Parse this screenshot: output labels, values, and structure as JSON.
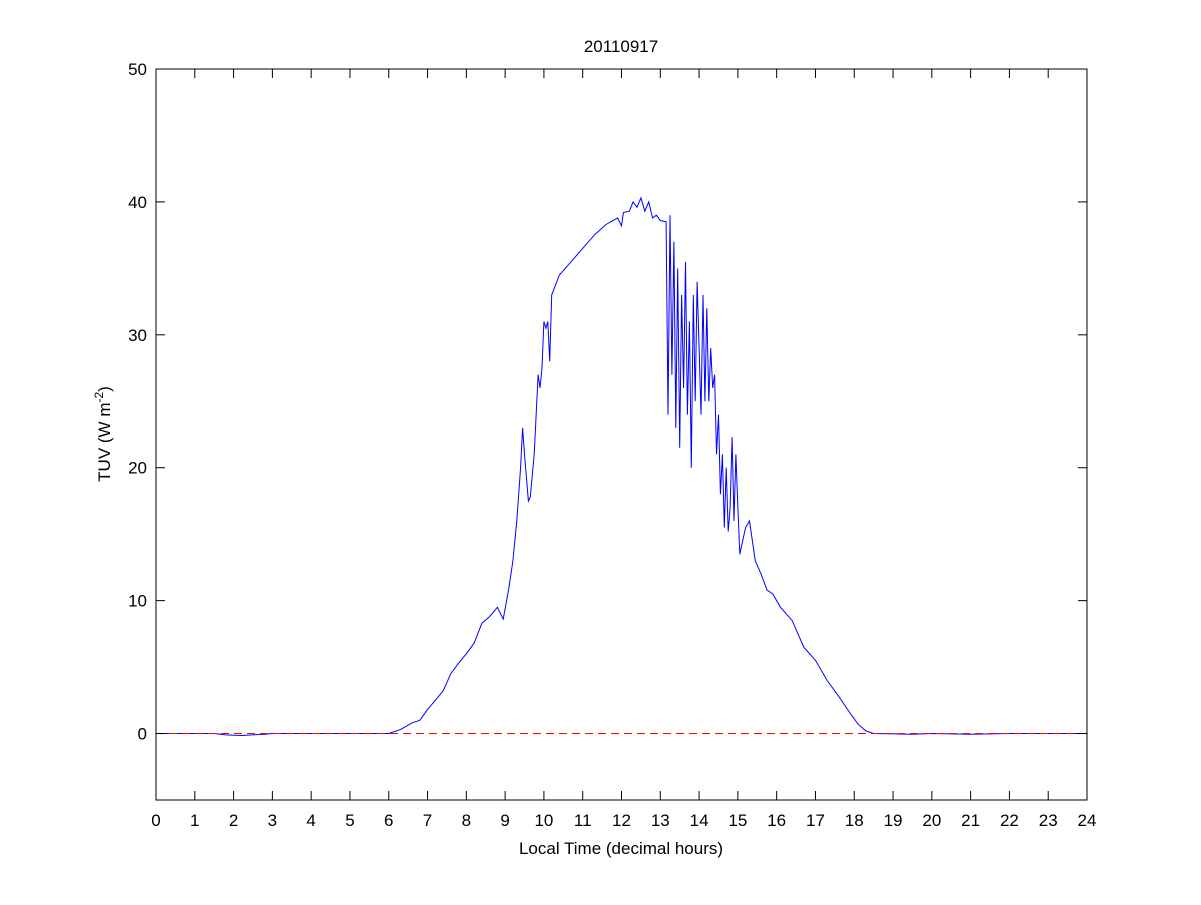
{
  "chart_data": {
    "type": "line",
    "title": "20110917",
    "xlabel": "Local Time (decimal hours)",
    "ylabel_main": "TUV (W m",
    "ylabel_sup": "-2",
    "ylabel_close": ")",
    "xlim": [
      0,
      24
    ],
    "ylim": [
      -5,
      50
    ],
    "xticks": [
      0,
      1,
      2,
      3,
      4,
      5,
      6,
      7,
      8,
      9,
      10,
      11,
      12,
      13,
      14,
      15,
      16,
      17,
      18,
      19,
      20,
      21,
      22,
      23,
      24
    ],
    "yticks": [
      0,
      10,
      20,
      30,
      40,
      50
    ],
    "grid": false,
    "series": [
      {
        "color": "#0000ff",
        "x": [
          0,
          1.5,
          1.8,
          2.2,
          2.8,
          3.0,
          6.0,
          6.3,
          6.6,
          6.8,
          7.0,
          7.2,
          7.4,
          7.6,
          7.8,
          8.0,
          8.2,
          8.4,
          8.6,
          8.8,
          8.95,
          9.1,
          9.2,
          9.3,
          9.4,
          9.45,
          9.5,
          9.6,
          9.65,
          9.75,
          9.85,
          9.9,
          9.95,
          10.0,
          10.05,
          10.1,
          10.15,
          10.2,
          10.4,
          10.7,
          11.0,
          11.3,
          11.6,
          11.9,
          12.0,
          12.05,
          12.2,
          12.3,
          12.4,
          12.5,
          12.6,
          12.7,
          12.8,
          12.9,
          13.0,
          13.15,
          13.2,
          13.25,
          13.3,
          13.35,
          13.4,
          13.45,
          13.5,
          13.55,
          13.6,
          13.65,
          13.7,
          13.75,
          13.8,
          13.85,
          13.9,
          13.95,
          14.0,
          14.05,
          14.1,
          14.15,
          14.2,
          14.25,
          14.3,
          14.35,
          14.4,
          14.45,
          14.5,
          14.55,
          14.6,
          14.65,
          14.7,
          14.75,
          14.8,
          14.85,
          14.9,
          14.95,
          15.0,
          15.05,
          15.2,
          15.3,
          15.45,
          15.6,
          15.75,
          15.9,
          16.1,
          16.4,
          16.7,
          17.0,
          17.3,
          17.6,
          17.9,
          18.1,
          18.3,
          18.5,
          19.5,
          20.0,
          21.0,
          22.0,
          24.0
        ],
        "y": [
          0,
          0,
          -0.1,
          -0.15,
          -0.05,
          0,
          0,
          0.3,
          0.8,
          1.0,
          1.8,
          2.5,
          3.2,
          4.5,
          5.3,
          6.0,
          6.8,
          8.3,
          8.8,
          9.5,
          8.6,
          11,
          13,
          16,
          20,
          23,
          21,
          17.5,
          17.8,
          21,
          27,
          26,
          27.5,
          31,
          30.5,
          31,
          28,
          33,
          34.5,
          35.5,
          36.5,
          37.5,
          38.3,
          38.8,
          38.2,
          39.2,
          39.3,
          40,
          39.6,
          40.3,
          39.3,
          40,
          38.8,
          39,
          38.6,
          38.5,
          24,
          39,
          27,
          37,
          23,
          35,
          21.5,
          33,
          26,
          35.5,
          24,
          31,
          20,
          33,
          25,
          34,
          29,
          24,
          33,
          25,
          32,
          25,
          29,
          26,
          27,
          21,
          24,
          18,
          21,
          15.5,
          20,
          15.2,
          17,
          22.3,
          16,
          21,
          17,
          13.5,
          15.5,
          16,
          13,
          12,
          10.8,
          10.5,
          9.5,
          8.5,
          6.5,
          5.5,
          4,
          2.8,
          1.5,
          0.7,
          0.2,
          0,
          -0.05,
          0,
          -0.05,
          0,
          0
        ]
      },
      {
        "color": "#ff0000",
        "style": "dashed",
        "x": [
          0,
          24
        ],
        "y": [
          0,
          0
        ]
      }
    ]
  }
}
